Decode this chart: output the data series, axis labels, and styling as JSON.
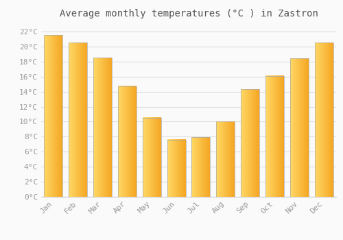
{
  "title": "Average monthly temperatures (°C ) in Zastron",
  "months": [
    "Jan",
    "Feb",
    "Mar",
    "Apr",
    "May",
    "Jun",
    "Jul",
    "Aug",
    "Sep",
    "Oct",
    "Nov",
    "Dec"
  ],
  "values": [
    21.5,
    20.5,
    18.5,
    14.7,
    10.5,
    7.6,
    7.9,
    10.0,
    14.3,
    16.1,
    18.4,
    20.5
  ],
  "bar_color_left": "#FFD966",
  "bar_color_right": "#F5A623",
  "bar_edge_color": "#AAAAAA",
  "background_color": "#FAFAFA",
  "grid_color": "#DDDDDD",
  "ytick_labels": [
    "0°C",
    "2°C",
    "4°C",
    "6°C",
    "8°C",
    "10°C",
    "12°C",
    "14°C",
    "16°C",
    "18°C",
    "20°C",
    "22°C"
  ],
  "ytick_values": [
    0,
    2,
    4,
    6,
    8,
    10,
    12,
    14,
    16,
    18,
    20,
    22
  ],
  "ylim": [
    0,
    23
  ],
  "title_fontsize": 10,
  "tick_fontsize": 8,
  "tick_font_color": "#999999",
  "title_font_color": "#555555",
  "bar_width": 0.75,
  "n_gradient_steps": 100
}
